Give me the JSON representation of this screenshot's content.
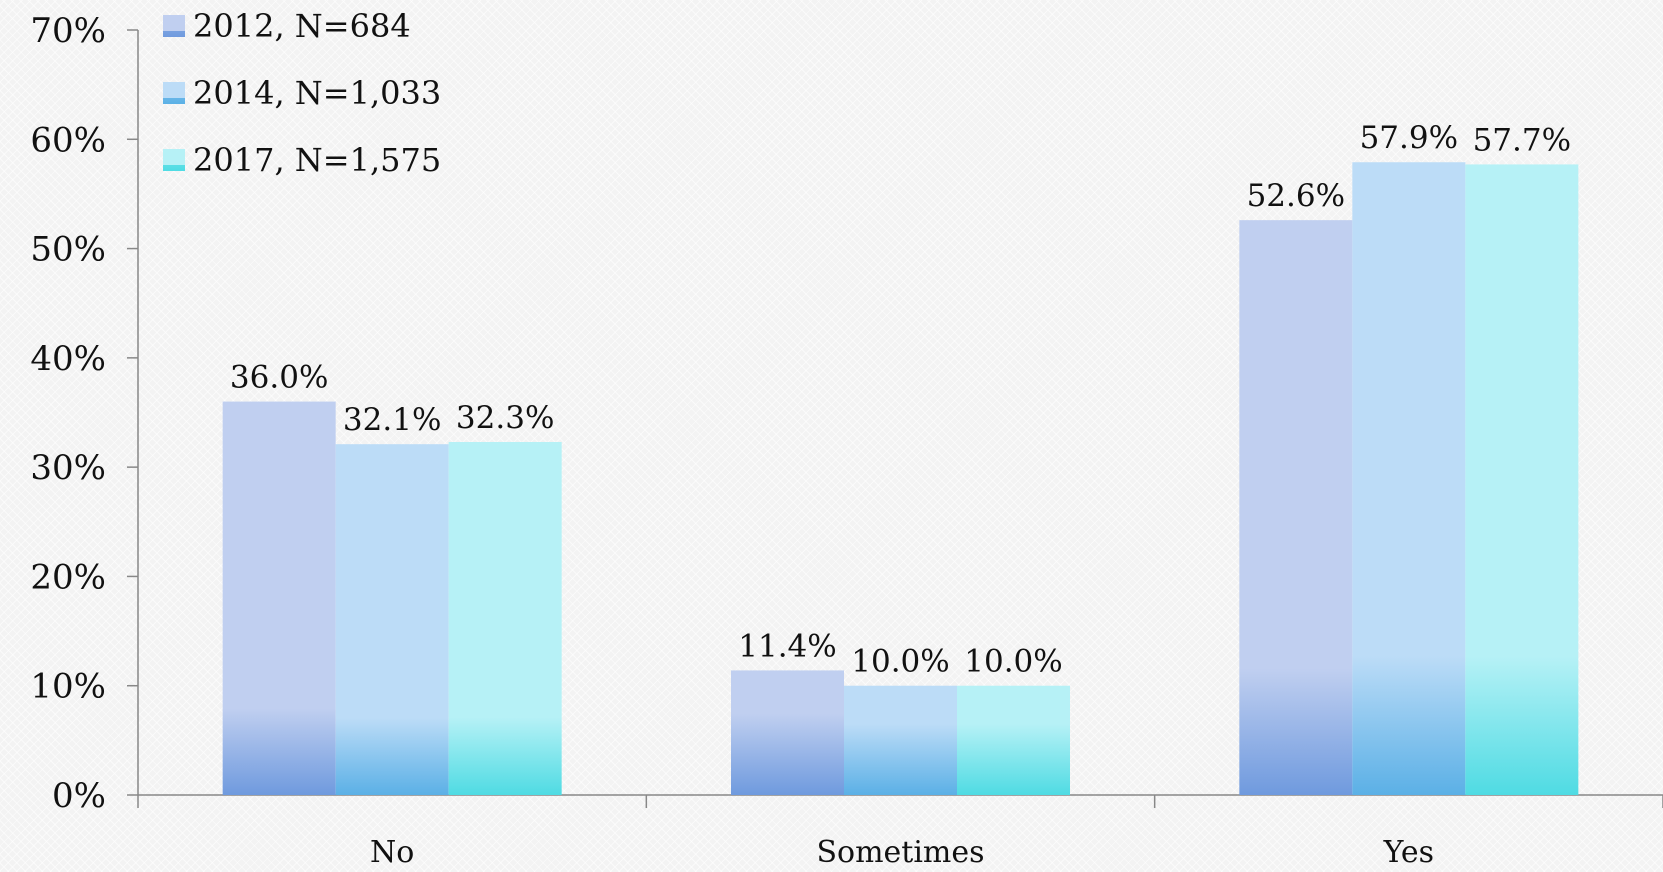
{
  "chart_data": {
    "type": "bar",
    "categories": [
      "No",
      "Sometimes",
      "Yes"
    ],
    "series": [
      {
        "name": "2012, N=684",
        "values": [
          36.0,
          11.4,
          52.6
        ],
        "labels": [
          "36.0%",
          "11.4%",
          "52.6%"
        ],
        "color": "#c0cff0",
        "shade": "#6f9ade"
      },
      {
        "name": "2014, N=1,033",
        "values": [
          32.1,
          10.0,
          57.9
        ],
        "labels": [
          "32.1%",
          "10.0%",
          "57.9%"
        ],
        "color": "#bcdcf7",
        "shade": "#5bb0e6"
      },
      {
        "name": "2017, N=1,575",
        "values": [
          32.3,
          10.0,
          57.7
        ],
        "labels": [
          "32.3%",
          "10.0%",
          "57.7%"
        ],
        "color": "#b6f1f6",
        "shade": "#4fdbe3"
      }
    ],
    "yticks": [
      "0%",
      "10%",
      "20%",
      "30%",
      "40%",
      "50%",
      "60%",
      "70%"
    ],
    "ylim": [
      0,
      70
    ],
    "xlabel": "",
    "ylabel": "",
    "grid": false,
    "legend_position": "top-left"
  }
}
